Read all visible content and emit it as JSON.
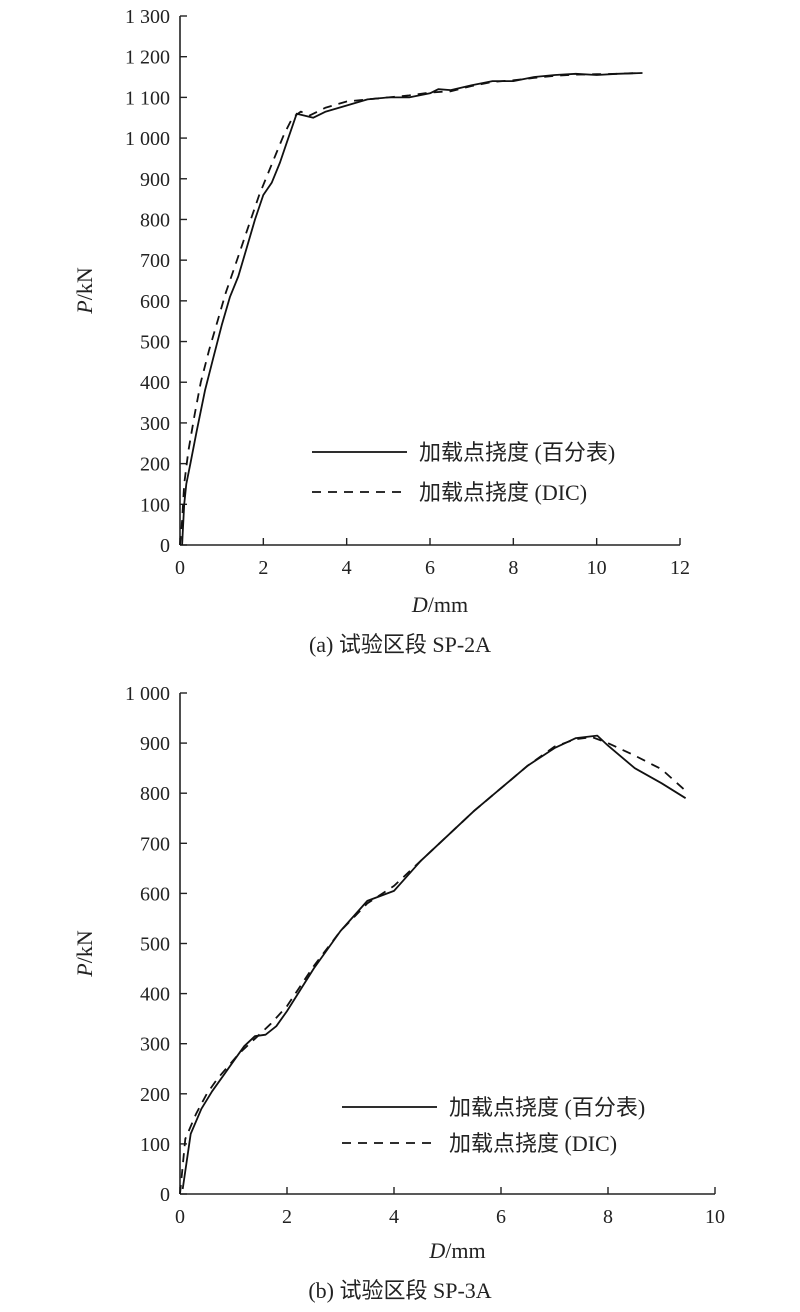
{
  "chart_data": [
    {
      "type": "line",
      "caption": "(a) 试验区段 SP-2A",
      "xlabel_var": "D",
      "xlabel_unit": "/mm",
      "ylabel_var": "P",
      "ylabel_unit": "/kN",
      "xlim": [
        0,
        12
      ],
      "ylim": [
        0,
        1300
      ],
      "xticks": [
        0,
        2,
        4,
        6,
        8,
        10,
        12
      ],
      "yticks": [
        0,
        100,
        200,
        300,
        400,
        500,
        600,
        700,
        800,
        900,
        1000,
        1100,
        1200,
        1300
      ],
      "ytick_labels": [
        "0",
        "100",
        "200",
        "300",
        "400",
        "500",
        "600",
        "700",
        "800",
        "900",
        "1 000",
        "1 100",
        "1 200",
        "1 300"
      ],
      "xtick_labels": [
        "0",
        "2",
        "4",
        "6",
        "8",
        "10",
        "12"
      ],
      "grid": false,
      "legend_position": "lower-right",
      "series": [
        {
          "name": "加载点挠度 (百分表)",
          "style": "solid",
          "color": "#111111",
          "x": [
            0.05,
            0.1,
            0.15,
            0.25,
            0.4,
            0.6,
            0.8,
            1.0,
            1.2,
            1.4,
            1.6,
            1.8,
            2.0,
            2.2,
            2.4,
            2.6,
            2.8,
            3.0,
            3.2,
            3.5,
            4.0,
            4.5,
            5.0,
            5.5,
            6.0,
            6.2,
            6.5,
            7.0,
            7.5,
            8.0,
            8.5,
            9.0,
            9.5,
            10.0,
            10.5,
            11.1
          ],
          "y": [
            0,
            100,
            150,
            200,
            280,
            380,
            460,
            540,
            610,
            660,
            730,
            800,
            860,
            890,
            940,
            1000,
            1060,
            1055,
            1050,
            1065,
            1080,
            1095,
            1100,
            1100,
            1110,
            1120,
            1118,
            1130,
            1140,
            1140,
            1150,
            1155,
            1158,
            1155,
            1158,
            1160
          ]
        },
        {
          "name": "加载点挠度 (DIC)",
          "style": "dashed",
          "color": "#111111",
          "x": [
            0.0,
            0.05,
            0.1,
            0.2,
            0.35,
            0.5,
            0.7,
            0.9,
            1.1,
            1.3,
            1.5,
            1.7,
            1.9,
            2.1,
            2.3,
            2.5,
            2.7,
            2.9,
            3.1,
            3.5,
            4.0,
            4.5,
            5.0,
            5.5,
            6.0,
            6.5,
            7.0,
            7.5,
            8.0,
            8.5,
            9.0,
            9.5,
            10.0,
            10.5,
            11.0
          ],
          "y": [
            0,
            60,
            150,
            230,
            320,
            400,
            480,
            550,
            620,
            680,
            740,
            800,
            860,
            910,
            960,
            1010,
            1050,
            1065,
            1055,
            1075,
            1090,
            1095,
            1100,
            1105,
            1112,
            1115,
            1128,
            1138,
            1142,
            1148,
            1153,
            1156,
            1157,
            1158,
            1160
          ]
        }
      ]
    },
    {
      "type": "line",
      "caption": "(b) 试验区段 SP-3A",
      "xlabel_var": "D",
      "xlabel_unit": "/mm",
      "ylabel_var": "P",
      "ylabel_unit": "/kN",
      "xlim": [
        0,
        10
      ],
      "ylim": [
        0,
        1000
      ],
      "xticks": [
        0,
        2,
        4,
        6,
        8,
        10
      ],
      "yticks": [
        0,
        100,
        200,
        300,
        400,
        500,
        600,
        700,
        800,
        900,
        1000
      ],
      "ytick_labels": [
        "0",
        "100",
        "200",
        "300",
        "400",
        "500",
        "600",
        "700",
        "800",
        "900",
        "1 000"
      ],
      "xtick_labels": [
        "0",
        "2",
        "4",
        "6",
        "8",
        "10"
      ],
      "grid": false,
      "legend_position": "lower-right",
      "series": [
        {
          "name": "加载点挠度 (百分表)",
          "style": "solid",
          "color": "#111111",
          "x": [
            0.05,
            0.2,
            0.4,
            0.6,
            0.8,
            1.0,
            1.2,
            1.4,
            1.6,
            1.8,
            2.0,
            2.5,
            3.0,
            3.5,
            4.0,
            4.5,
            5.0,
            5.5,
            6.0,
            6.5,
            7.0,
            7.4,
            7.8,
            8.0,
            8.5,
            9.0,
            9.45
          ],
          "y": [
            10,
            120,
            170,
            205,
            235,
            265,
            295,
            315,
            318,
            335,
            365,
            450,
            525,
            585,
            605,
            665,
            715,
            765,
            810,
            855,
            890,
            910,
            915,
            895,
            850,
            820,
            790
          ]
        },
        {
          "name": "加载点挠度 (DIC)",
          "style": "dashed",
          "color": "#111111",
          "x": [
            0.0,
            0.1,
            0.3,
            0.5,
            0.7,
            0.9,
            1.1,
            1.3,
            1.5,
            1.7,
            2.0,
            2.5,
            3.0,
            3.5,
            4.0,
            4.5,
            5.0,
            5.5,
            6.0,
            6.5,
            7.0,
            7.4,
            7.7,
            8.0,
            8.5,
            9.0,
            9.5
          ],
          "y": [
            0,
            110,
            160,
            200,
            230,
            255,
            280,
            300,
            320,
            340,
            375,
            455,
            525,
            580,
            615,
            665,
            715,
            765,
            810,
            855,
            893,
            908,
            912,
            900,
            875,
            848,
            800
          ]
        }
      ]
    }
  ]
}
